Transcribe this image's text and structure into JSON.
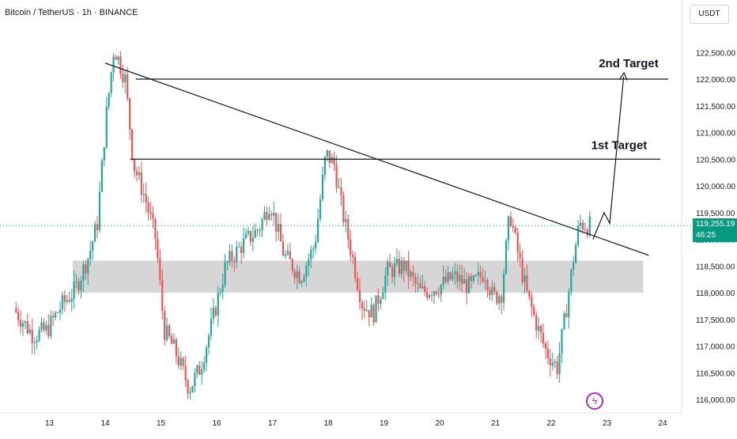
{
  "header": {
    "title": "Bitcoin / TetherUS · 1h · BINANCE",
    "unit": "USDT"
  },
  "current_price": {
    "value": "119,255.19",
    "countdown": "46:25"
  },
  "colors": {
    "up": "#26a69a",
    "down": "#ef5350",
    "zone": "#c8c8c8",
    "current_line": "#089981",
    "drawing": "#131722",
    "logo": "#b02bc9"
  },
  "chart_data": {
    "type": "candlestick",
    "symbol": "BTCUSDT",
    "timeframe": "1h",
    "x_tick_labels": [
      "13",
      "14",
      "15",
      "16",
      "17",
      "18",
      "19",
      "20",
      "21",
      "22",
      "23",
      "24"
    ],
    "y_tick_labels": [
      "116,000.00",
      "116,500.00",
      "117,000.00",
      "117,500.00",
      "118,000.00",
      "118,500.00",
      "119,000.00",
      "119,500.00",
      "120,000.00",
      "120,500.00",
      "121,000.00",
      "121,500.00",
      "122,000.00",
      "122,500.00"
    ],
    "y_range": [
      115750,
      123150
    ],
    "x_range_days": [
      12.4,
      24.1
    ],
    "price_path": [
      [
        12.4,
        117700
      ],
      [
        12.75,
        117200
      ],
      [
        13.0,
        117300
      ],
      [
        13.25,
        117750
      ],
      [
        13.5,
        118050
      ],
      [
        13.75,
        118700
      ],
      [
        13.9,
        119300
      ],
      [
        14.05,
        121200
      ],
      [
        14.2,
        122600
      ],
      [
        14.4,
        122000
      ],
      [
        14.55,
        120400
      ],
      [
        14.75,
        119800
      ],
      [
        14.95,
        119000
      ],
      [
        15.1,
        117300
      ],
      [
        15.3,
        116900
      ],
      [
        15.55,
        116200
      ],
      [
        15.75,
        116600
      ],
      [
        15.95,
        117400
      ],
      [
        16.2,
        118500
      ],
      [
        16.5,
        118900
      ],
      [
        16.8,
        119200
      ],
      [
        17.0,
        119700
      ],
      [
        17.25,
        118700
      ],
      [
        17.55,
        118300
      ],
      [
        17.8,
        118900
      ],
      [
        18.0,
        120600
      ],
      [
        18.15,
        120400
      ],
      [
        18.3,
        119500
      ],
      [
        18.45,
        118800
      ],
      [
        18.65,
        117800
      ],
      [
        18.85,
        117600
      ],
      [
        19.1,
        118400
      ],
      [
        19.4,
        118500
      ],
      [
        19.7,
        118000
      ],
      [
        20.0,
        118100
      ],
      [
        20.3,
        118300
      ],
      [
        20.6,
        118100
      ],
      [
        20.85,
        118400
      ],
      [
        21.0,
        117900
      ],
      [
        21.15,
        118000
      ],
      [
        21.3,
        119500
      ],
      [
        21.45,
        118700
      ],
      [
        21.6,
        118000
      ],
      [
        21.75,
        117500
      ],
      [
        21.95,
        116900
      ],
      [
        22.15,
        116600
      ],
      [
        22.3,
        117600
      ],
      [
        22.45,
        118700
      ],
      [
        22.55,
        119300
      ],
      [
        22.7,
        119255
      ]
    ],
    "resistance_levels": [
      122000,
      120500
    ],
    "support_zone": [
      118000,
      118600
    ],
    "trendline": {
      "from": [
        14.0,
        122300
      ],
      "to": [
        23.75,
        118700
      ]
    },
    "projection_path": [
      [
        22.75,
        119000
      ],
      [
        22.95,
        119500
      ],
      [
        23.05,
        119300
      ],
      [
        23.3,
        122050
      ]
    ],
    "annotations": [
      {
        "text": "2nd Target",
        "level": 122000
      },
      {
        "text": "1st Target",
        "level": 120500
      }
    ],
    "current_price_line": 119255.19
  }
}
